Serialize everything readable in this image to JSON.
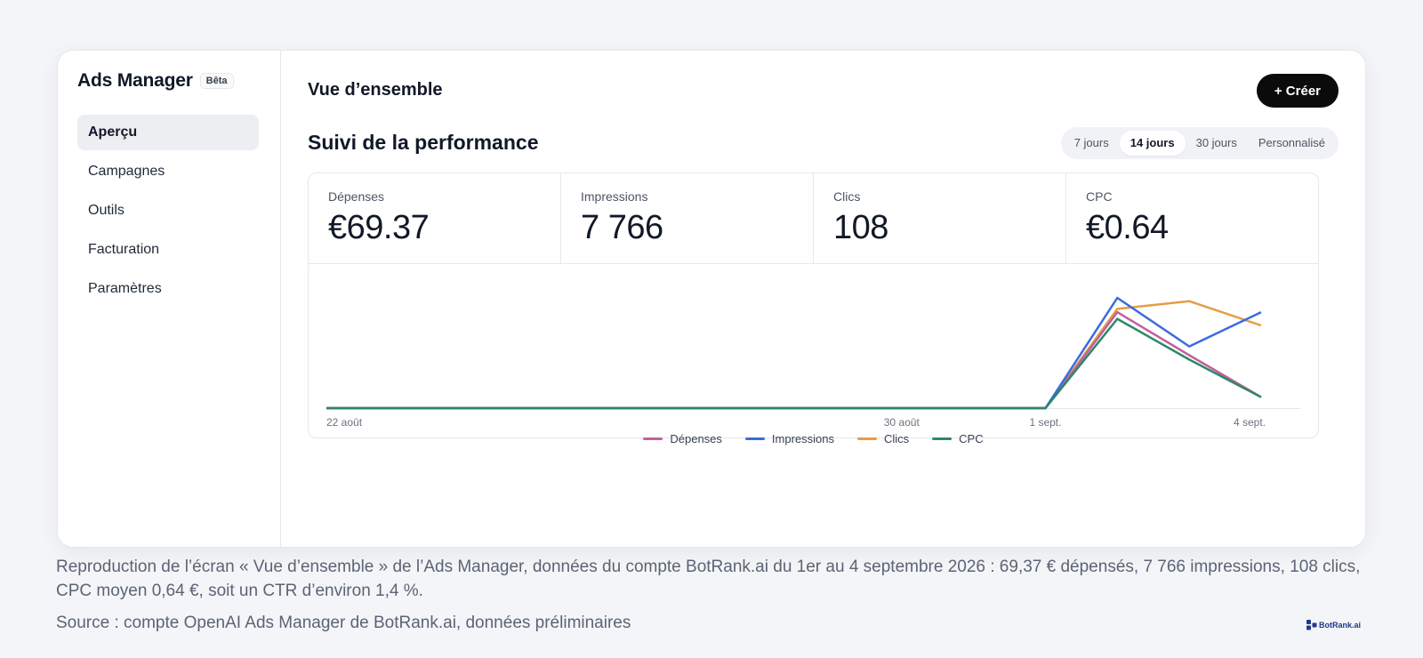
{
  "app": {
    "name": "Ads Manager",
    "badge": "Bêta"
  },
  "sidebar": {
    "items": [
      {
        "label": "Aperçu",
        "active": true
      },
      {
        "label": "Campagnes",
        "active": false
      },
      {
        "label": "Outils",
        "active": false
      },
      {
        "label": "Facturation",
        "active": false
      },
      {
        "label": "Paramètres",
        "active": false
      }
    ]
  },
  "header": {
    "title": "Vue d’ensemble",
    "create_label": "+ Créer"
  },
  "performance": {
    "title": "Suivi de la performance",
    "ranges": [
      "7 jours",
      "14 jours",
      "30 jours",
      "Personnalisé"
    ],
    "active_range": "14 jours"
  },
  "kpis": [
    {
      "label": "Dépenses",
      "value": "€69.37"
    },
    {
      "label": "Impressions",
      "value": "7 766"
    },
    {
      "label": "Clics",
      "value": "108"
    },
    {
      "label": "CPC",
      "value": "€0.64"
    }
  ],
  "colors": {
    "depenses": "#c0609e",
    "impressions": "#3b6be0",
    "clics": "#e59d45",
    "cpc": "#2e8766"
  },
  "chart_data": {
    "type": "line",
    "x": [
      "22 août",
      "23 août",
      "24 août",
      "25 août",
      "26 août",
      "27 août",
      "28 août",
      "29 août",
      "30 août",
      "31 août",
      "1 sept.",
      "2 sept.",
      "3 sept.",
      "4 sept."
    ],
    "xticks": [
      "22 août",
      "30 août",
      "1 sept.",
      "4 sept."
    ],
    "normalized": true,
    "ylim": [
      0,
      1
    ],
    "grid": false,
    "legend": "bottom-center",
    "series": [
      {
        "name": "Dépenses",
        "color": "#c0609e",
        "values": [
          0,
          0,
          0,
          0,
          0,
          0,
          0,
          0,
          0,
          0,
          0,
          0.87,
          0.48,
          0.1
        ]
      },
      {
        "name": "Impressions",
        "color": "#3b6be0",
        "values": [
          0,
          0,
          0,
          0,
          0,
          0,
          0,
          0,
          0,
          0,
          0,
          1.0,
          0.56,
          0.87
        ]
      },
      {
        "name": "Clics",
        "color": "#e59d45",
        "values": [
          0,
          0,
          0,
          0,
          0,
          0,
          0,
          0,
          0,
          0,
          0,
          0.9,
          0.97,
          0.75
        ]
      },
      {
        "name": "CPC",
        "color": "#2e8766",
        "values": [
          0,
          0,
          0,
          0,
          0,
          0,
          0,
          0,
          0,
          0,
          0,
          0.81,
          0.44,
          0.1
        ]
      }
    ]
  },
  "caption": {
    "text": "Reproduction de l’écran « Vue d’ensemble » de l’Ads Manager, données du compte BotRank.ai du 1er au 4 septembre 2026 : 69,37 € dépensés, 7 766 impressions, 108 clics, CPC moyen 0,64 €, soit un CTR d’environ 1,4 %.",
    "source": "Source : compte OpenAI Ads Manager de BotRank.ai, données préliminaires",
    "logo": "BotRank.ai"
  }
}
